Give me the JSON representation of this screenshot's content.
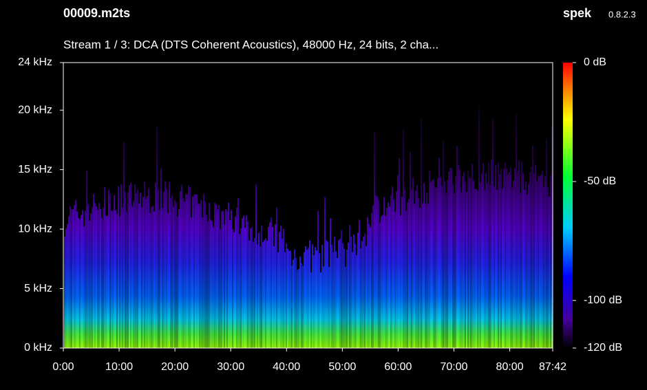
{
  "chart_data": {
    "type": "spectrogram",
    "title": "00009.m2ts",
    "app_name": "spek",
    "app_version": "0.8.2.3",
    "subtitle": "Stream 1 / 3: DCA (DTS Coherent Acoustics), 48000 Hz, 24 bits, 2 cha...",
    "xlim": [
      0,
      87.7
    ],
    "xticks": [
      {
        "value": 0,
        "label": "0:00"
      },
      {
        "value": 10,
        "label": "10:00"
      },
      {
        "value": 20,
        "label": "20:00"
      },
      {
        "value": 30,
        "label": "30:00"
      },
      {
        "value": 40,
        "label": "40:00"
      },
      {
        "value": 50,
        "label": "50:00"
      },
      {
        "value": 60,
        "label": "60:00"
      },
      {
        "value": 70,
        "label": "70:00"
      },
      {
        "value": 80,
        "label": "80:00"
      },
      {
        "value": 87.7,
        "label": "87:42"
      }
    ],
    "ylim": [
      0,
      24
    ],
    "yticks": [
      {
        "value": 0,
        "label": "0 kHz"
      },
      {
        "value": 5,
        "label": "5 kHz"
      },
      {
        "value": 10,
        "label": "10 kHz"
      },
      {
        "value": 15,
        "label": "15 kHz"
      },
      {
        "value": 20,
        "label": "20 kHz"
      },
      {
        "value": 24,
        "label": "24 kHz"
      }
    ],
    "clim": [
      -120,
      0
    ],
    "cticks": [
      {
        "value": 0,
        "label": "0 dB"
      },
      {
        "value": -50,
        "label": "-50 dB"
      },
      {
        "value": -100,
        "label": "-100 dB"
      },
      {
        "value": -120,
        "label": "-120 dB"
      }
    ]
  }
}
